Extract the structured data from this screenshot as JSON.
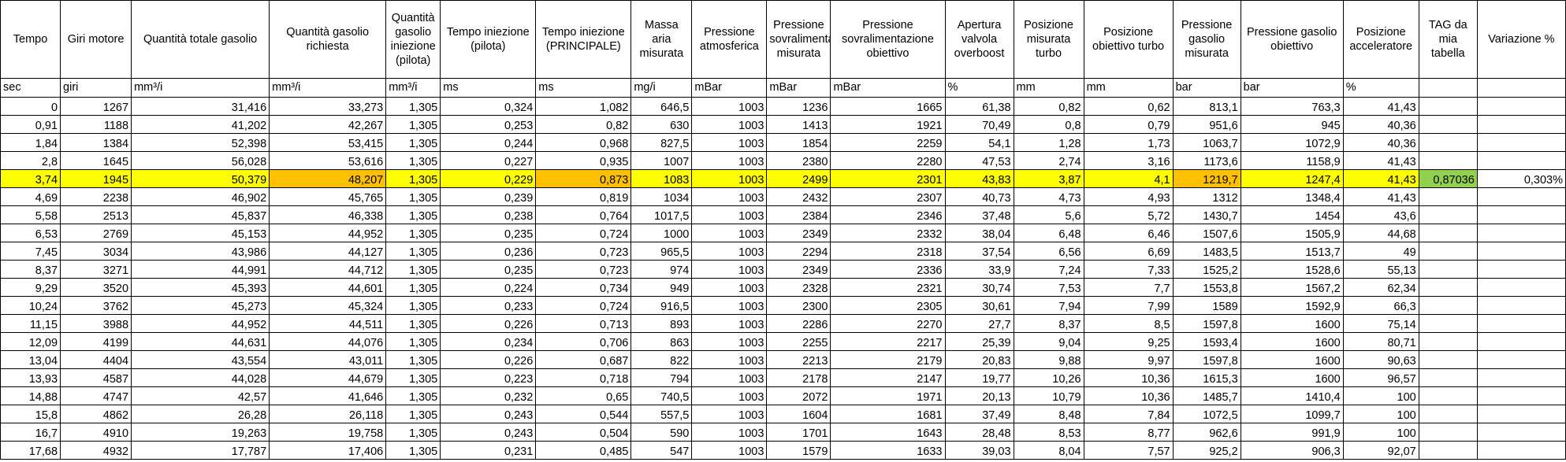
{
  "headers": [
    "Tempo",
    "Giri motore",
    "Quantità totale gasolio",
    "Quantità gasolio richiesta",
    "Quantità gasolio iniezione (pilota)",
    "Tempo iniezione (pilota)",
    "Tempo iniezione (PRINCIPALE)",
    "Massa aria misurata",
    "Pressione atmosferica",
    "Pressione sovralimentazione misurata",
    "Pressione sovralimentazione obiettivo",
    "Apertura valvola overboost",
    "Posizione misurata turbo",
    "Posizione obiettivo turbo",
    "Pressione gasolio misurata",
    "Pressione gasolio obiettivo",
    "Posizione acceleratore",
    "TAG da mia tabella",
    "Variazione %"
  ],
  "units": [
    "sec",
    "giri",
    "mm³/i",
    "mm³/i",
    "mm³/i",
    "ms",
    "ms",
    "mg/i",
    "mBar",
    "mBar",
    "mBar",
    "%",
    "mm",
    "mm",
    "bar",
    "bar",
    "%",
    "",
    ""
  ],
  "rows": [
    [
      "0",
      "1267",
      "31,416",
      "33,273",
      "1,305",
      "0,324",
      "1,082",
      "646,5",
      "1003",
      "1236",
      "1665",
      "61,38",
      "0,82",
      "0,62",
      "813,1",
      "763,3",
      "41,43",
      "",
      ""
    ],
    [
      "0,91",
      "1188",
      "41,202",
      "42,267",
      "1,305",
      "0,253",
      "0,82",
      "630",
      "1003",
      "1413",
      "1921",
      "70,49",
      "0,8",
      "0,79",
      "951,6",
      "945",
      "40,36",
      "",
      ""
    ],
    [
      "1,84",
      "1384",
      "52,398",
      "53,415",
      "1,305",
      "0,244",
      "0,968",
      "827,5",
      "1003",
      "1854",
      "2259",
      "54,1",
      "1,28",
      "1,73",
      "1063,7",
      "1072,9",
      "40,36",
      "",
      ""
    ],
    [
      "2,8",
      "1645",
      "56,028",
      "53,616",
      "1,305",
      "0,227",
      "0,935",
      "1007",
      "1003",
      "2380",
      "2280",
      "47,53",
      "2,74",
      "3,16",
      "1173,6",
      "1158,9",
      "41,43",
      "",
      ""
    ],
    [
      "3,74",
      "1945",
      "50,379",
      "48,207",
      "1,305",
      "0,229",
      "0,873",
      "1083",
      "1003",
      "2499",
      "2301",
      "43,83",
      "3,87",
      "4,1",
      "1219,7",
      "1247,4",
      "41,43",
      "0,87036",
      "0,303%"
    ],
    [
      "4,69",
      "2238",
      "46,902",
      "45,765",
      "1,305",
      "0,239",
      "0,819",
      "1034",
      "1003",
      "2432",
      "2307",
      "40,73",
      "4,73",
      "4,93",
      "1312",
      "1348,4",
      "41,43",
      "",
      ""
    ],
    [
      "5,58",
      "2513",
      "45,837",
      "46,338",
      "1,305",
      "0,238",
      "0,764",
      "1017,5",
      "1003",
      "2384",
      "2346",
      "37,48",
      "5,6",
      "5,72",
      "1430,7",
      "1454",
      "43,6",
      "",
      ""
    ],
    [
      "6,53",
      "2769",
      "45,153",
      "44,952",
      "1,305",
      "0,235",
      "0,724",
      "1000",
      "1003",
      "2349",
      "2332",
      "38,04",
      "6,48",
      "6,46",
      "1507,6",
      "1505,9",
      "44,68",
      "",
      ""
    ],
    [
      "7,45",
      "3034",
      "43,986",
      "44,127",
      "1,305",
      "0,236",
      "0,723",
      "965,5",
      "1003",
      "2294",
      "2318",
      "37,54",
      "6,56",
      "6,69",
      "1483,5",
      "1513,7",
      "49",
      "",
      ""
    ],
    [
      "8,37",
      "3271",
      "44,991",
      "44,712",
      "1,305",
      "0,235",
      "0,723",
      "974",
      "1003",
      "2349",
      "2336",
      "33,9",
      "7,24",
      "7,33",
      "1525,2",
      "1528,6",
      "55,13",
      "",
      ""
    ],
    [
      "9,29",
      "3520",
      "45,393",
      "44,601",
      "1,305",
      "0,224",
      "0,734",
      "949",
      "1003",
      "2328",
      "2321",
      "30,74",
      "7,53",
      "7,7",
      "1553,8",
      "1567,2",
      "62,34",
      "",
      ""
    ],
    [
      "10,24",
      "3762",
      "45,273",
      "45,324",
      "1,305",
      "0,233",
      "0,724",
      "916,5",
      "1003",
      "2300",
      "2305",
      "30,61",
      "7,94",
      "7,99",
      "1589",
      "1592,9",
      "66,3",
      "",
      ""
    ],
    [
      "11,15",
      "3988",
      "44,952",
      "44,511",
      "1,305",
      "0,226",
      "0,713",
      "893",
      "1003",
      "2286",
      "2270",
      "27,7",
      "8,37",
      "8,5",
      "1597,8",
      "1600",
      "75,14",
      "",
      ""
    ],
    [
      "12,09",
      "4199",
      "44,631",
      "44,076",
      "1,305",
      "0,234",
      "0,706",
      "863",
      "1003",
      "2255",
      "2217",
      "25,39",
      "9,04",
      "9,25",
      "1593,4",
      "1600",
      "80,71",
      "",
      ""
    ],
    [
      "13,04",
      "4404",
      "43,554",
      "43,011",
      "1,305",
      "0,226",
      "0,687",
      "822",
      "1003",
      "2213",
      "2179",
      "20,83",
      "9,88",
      "9,97",
      "1597,8",
      "1600",
      "90,63",
      "",
      ""
    ],
    [
      "13,93",
      "4587",
      "44,028",
      "44,679",
      "1,305",
      "0,223",
      "0,718",
      "794",
      "1003",
      "2178",
      "2147",
      "19,77",
      "10,26",
      "10,36",
      "1615,3",
      "1600",
      "96,57",
      "",
      ""
    ],
    [
      "14,88",
      "4747",
      "42,57",
      "41,646",
      "1,305",
      "0,232",
      "0,65",
      "740,5",
      "1003",
      "2072",
      "1971",
      "20,13",
      "10,79",
      "10,36",
      "1485,7",
      "1410,4",
      "100",
      "",
      ""
    ],
    [
      "15,8",
      "4862",
      "26,28",
      "26,118",
      "1,305",
      "0,243",
      "0,544",
      "557,5",
      "1003",
      "1604",
      "1681",
      "37,49",
      "8,48",
      "7,84",
      "1072,5",
      "1099,7",
      "100",
      "",
      ""
    ],
    [
      "16,7",
      "4910",
      "19,263",
      "19,758",
      "1,305",
      "0,243",
      "0,504",
      "590",
      "1003",
      "1701",
      "1643",
      "28,48",
      "8,53",
      "8,77",
      "962,6",
      "991,9",
      "100",
      "",
      ""
    ],
    [
      "17,68",
      "4932",
      "17,787",
      "17,406",
      "1,305",
      "0,231",
      "0,485",
      "547",
      "1003",
      "1579",
      "1633",
      "39,03",
      "8,04",
      "7,57",
      "925,2",
      "906,3",
      "92,07",
      "",
      ""
    ]
  ],
  "highlight": {
    "row_index": 4,
    "row_color": "#ffff00",
    "orange_color": "#ffc000",
    "green_color": "#92d050",
    "orange_columns": [
      3,
      6,
      14
    ],
    "green_columns": [
      17
    ],
    "white_columns": [
      18
    ]
  }
}
